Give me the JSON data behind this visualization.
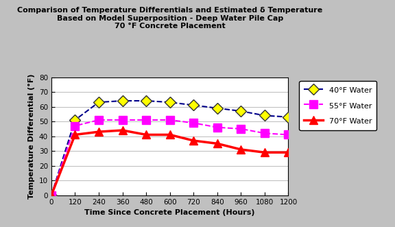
{
  "title_line1": "Comparison of Temperature Differentials and Estimated δ Temperature",
  "title_line2": "Based on Model Superposition - Deep Water Pile Cap",
  "title_line3": "70 °F Concrete Placement",
  "xlabel": "Time Since Concrete Placement (Hours)",
  "ylabel": "Temperature Differential (°F)",
  "background_color": "#c0c0c0",
  "plot_bg_color": "#ffffff",
  "xlim": [
    0,
    1200
  ],
  "ylim": [
    0,
    80
  ],
  "xticks": [
    0,
    120,
    240,
    360,
    480,
    600,
    720,
    840,
    960,
    1080,
    1200
  ],
  "yticks": [
    0,
    10,
    20,
    30,
    40,
    50,
    60,
    70,
    80
  ],
  "series": {
    "40F": {
      "label": "40°F Water",
      "line_color": "#00008b",
      "line_style": "--",
      "marker": "D",
      "marker_color": "#ffff00",
      "marker_edge_color": "#333333",
      "x": [
        0,
        120,
        240,
        360,
        480,
        600,
        720,
        840,
        960,
        1080,
        1200
      ],
      "y": [
        0,
        51,
        63,
        64,
        64,
        63,
        61,
        59,
        57,
        54,
        53
      ]
    },
    "55F": {
      "label": "55°F Water",
      "line_color": "#ff00ff",
      "line_style": "--",
      "marker": "s",
      "marker_color": "#ff00ff",
      "marker_edge_color": "#ff00ff",
      "x": [
        0,
        120,
        240,
        360,
        480,
        600,
        720,
        840,
        960,
        1080,
        1200
      ],
      "y": [
        0,
        47,
        51,
        51,
        51,
        51,
        49,
        46,
        45,
        42,
        41
      ]
    },
    "70F": {
      "label": "70°F Water",
      "line_color": "#ff0000",
      "line_style": "-",
      "marker": "^",
      "marker_color": "#ff0000",
      "marker_edge_color": "#ff0000",
      "x": [
        0,
        120,
        240,
        360,
        480,
        600,
        720,
        840,
        960,
        1080,
        1200
      ],
      "y": [
        0,
        41,
        43,
        44,
        41,
        41,
        37,
        35,
        31,
        29,
        29
      ]
    }
  },
  "title_fontsize": 8,
  "axis_label_fontsize": 8,
  "tick_fontsize": 7.5,
  "legend_fontsize": 8
}
